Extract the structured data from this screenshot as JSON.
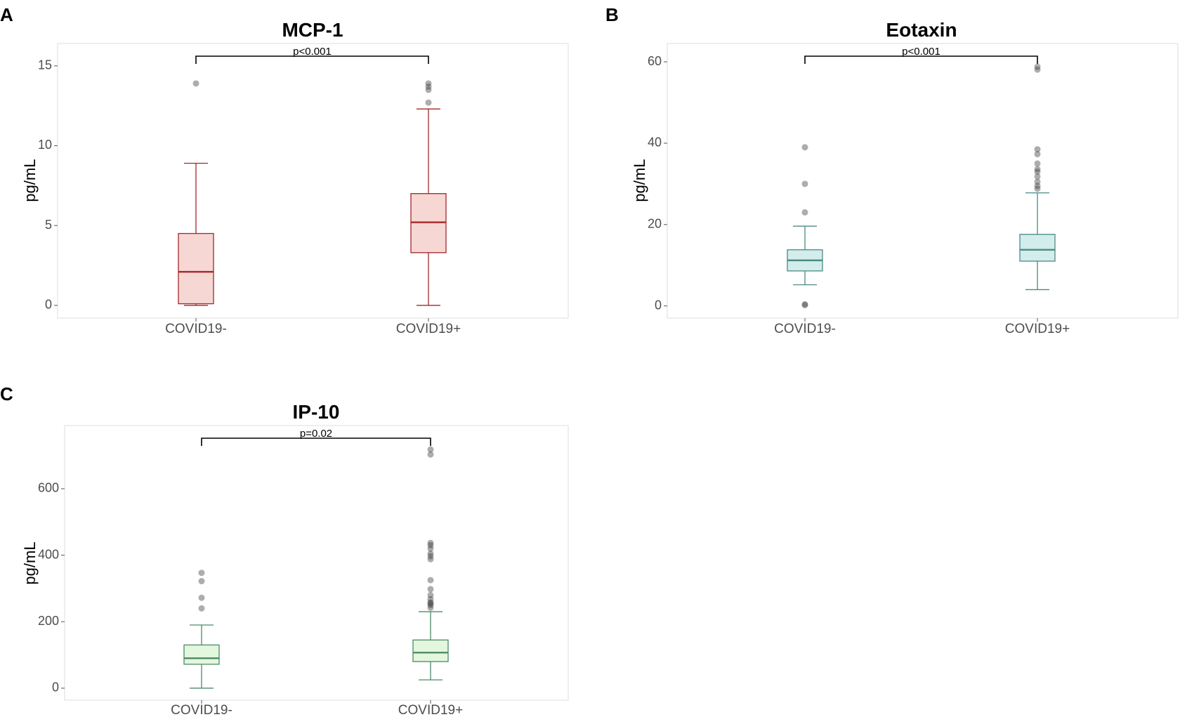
{
  "chart_data": [
    {
      "panel_label": "A",
      "type": "box",
      "title": "MCP-1",
      "ylabel": "pg/mL",
      "ylim": [
        -0.8,
        16.4
      ],
      "yticks": [
        0,
        5,
        10,
        15
      ],
      "ytick_labels": [
        "0",
        "5",
        "10",
        "15"
      ],
      "categories": [
        "COVID19-",
        "COVID19+"
      ],
      "colors": {
        "stroke": "#a3262a",
        "fill": "#f6d7d3"
      },
      "boxes": [
        {
          "min": 0.0,
          "q1": 0.1,
          "median": 2.1,
          "q3": 4.5,
          "max": 8.9,
          "outliers": [
            13.9
          ]
        },
        {
          "min": 0.0,
          "q1": 3.3,
          "median": 5.2,
          "q3": 7.0,
          "max": 12.3,
          "outliers": [
            12.7,
            13.5,
            13.7,
            13.9
          ]
        }
      ],
      "significance": "p<0.001"
    },
    {
      "panel_label": "B",
      "type": "box",
      "title": "Eotaxin",
      "ylabel": "pg/mL",
      "ylim": [
        -3,
        64.5
      ],
      "yticks": [
        0,
        20,
        40,
        60
      ],
      "ytick_labels": [
        "0",
        "20",
        "40",
        "60"
      ],
      "categories": [
        "COVID19-",
        "COVID19+"
      ],
      "colors": {
        "stroke": "#4c8a85",
        "fill": "#d3ecec"
      },
      "boxes": [
        {
          "min": 5.2,
          "q1": 8.6,
          "median": 11.2,
          "q3": 13.8,
          "max": 19.6,
          "outliers": [
            0.2,
            0.4,
            23.0,
            30.0,
            39.0
          ]
        },
        {
          "min": 4.0,
          "q1": 11.0,
          "median": 13.8,
          "q3": 17.6,
          "max": 27.8,
          "outliers": [
            28.8,
            29.5,
            30.5,
            31.8,
            33.0,
            33.6,
            35.0,
            37.3,
            38.5,
            58.1,
            58.8
          ]
        }
      ],
      "significance": "p<0.001"
    },
    {
      "panel_label": "C",
      "type": "box",
      "title": "IP-10",
      "ylabel": "pg/mL",
      "ylim": [
        -36,
        790
      ],
      "yticks": [
        0,
        200,
        400,
        600
      ],
      "ytick_labels": [
        "0",
        "200",
        "400",
        "600"
      ],
      "categories": [
        "COVID19-",
        "COVID19+"
      ],
      "colors": {
        "stroke": "#4c8a6a",
        "fill": "#e2f7dd"
      },
      "boxes": [
        {
          "min": 0,
          "q1": 72,
          "median": 90,
          "q3": 130,
          "max": 190,
          "outliers": [
            240,
            272,
            322,
            347
          ]
        },
        {
          "min": 25,
          "q1": 80,
          "median": 107,
          "q3": 145,
          "max": 230,
          "outliers": [
            242,
            250,
            255,
            258,
            268,
            280,
            298,
            325,
            388,
            397,
            405,
            420,
            430,
            437,
            703,
            718
          ]
        }
      ],
      "significance": "p=0.02"
    }
  ]
}
